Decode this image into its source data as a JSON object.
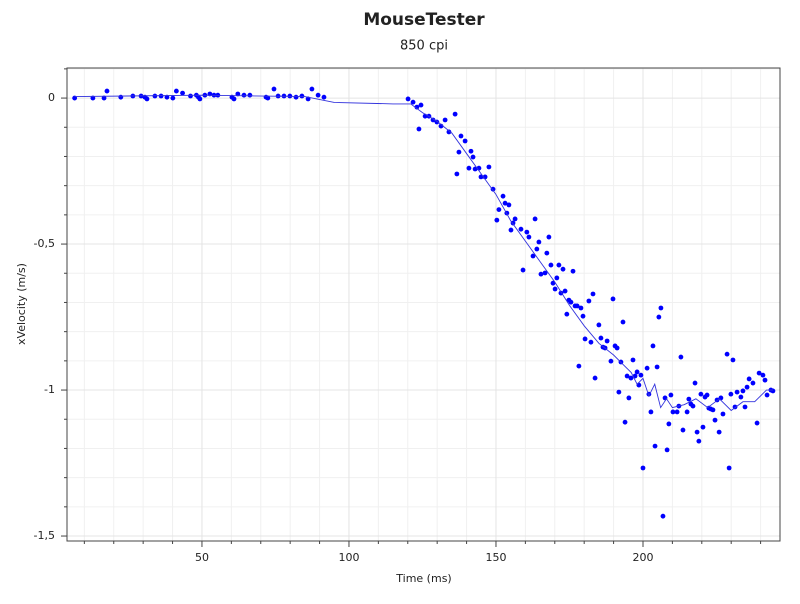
{
  "chart_data": {
    "type": "scatter",
    "title": "MouseTester",
    "subtitle": "850 cpi",
    "x_label": "Time (ms)",
    "y_label": "xVelocity (m/s)",
    "xlim": [
      4.1,
      246.6
    ],
    "ylim": [
      -1.517,
      0.103
    ],
    "xticks": [
      50,
      100,
      150,
      200
    ],
    "yticks": [
      0,
      {
        "value": -0.5,
        "label": "-0,5"
      },
      -1,
      {
        "value": -1.5,
        "label": "-1,5"
      }
    ],
    "x_minor_ticks": [
      10,
      20,
      30,
      40,
      60,
      70,
      80,
      90,
      110,
      120,
      130,
      140,
      160,
      170,
      180,
      190,
      210,
      220,
      230,
      240
    ],
    "y_minor_ticks": [
      0.1,
      -0.1,
      -0.2,
      -0.3,
      -0.4,
      -0.6,
      -0.7,
      -0.8,
      -0.9,
      -1.1,
      -1.2,
      -1.3,
      -1.4
    ],
    "grid": true,
    "series": [
      {
        "type": "scatter",
        "color": "#0000ff",
        "x": [
          6.7,
          12.9,
          16.7,
          17.7,
          22.4,
          26.5,
          29.3,
          30.6,
          31.3,
          34.0,
          36.1,
          38.1,
          40.1,
          41.3,
          43.4,
          46.1,
          48.1,
          48.8,
          49.3,
          51.0,
          52.7,
          54.1,
          55.4,
          60.2,
          60.9,
          62.2,
          64.3,
          66.3,
          71.8,
          72.4,
          74.5,
          75.9,
          77.9,
          79.9,
          82.0,
          84.0,
          86.1,
          87.4,
          89.5,
          91.5,
          120.1,
          121.8,
          123.1,
          123.8,
          124.5,
          125.9,
          127.2,
          128.6,
          129.9,
          131.3,
          132.7,
          134.0,
          136.1,
          136.7,
          137.4,
          138.1,
          139.5,
          140.8,
          141.5,
          142.2,
          142.9,
          144.2,
          144.9,
          146.3,
          147.6,
          149.0,
          150.3,
          151.0,
          152.4,
          153.1,
          153.7,
          154.4,
          155.1,
          155.8,
          156.5,
          158.5,
          159.2,
          160.5,
          161.2,
          162.6,
          163.3,
          163.9,
          164.6,
          165.3,
          166.7,
          167.3,
          168.0,
          168.7,
          169.4,
          170.1,
          170.7,
          171.4,
          172.1,
          172.8,
          173.5,
          174.1,
          174.8,
          175.5,
          176.2,
          176.9,
          177.6,
          178.2,
          178.9,
          179.6,
          180.3,
          181.6,
          182.3,
          183.0,
          183.7,
          185.0,
          185.7,
          186.4,
          187.1,
          187.8,
          189.1,
          189.8,
          190.5,
          191.2,
          191.8,
          192.5,
          193.2,
          193.9,
          194.6,
          195.2,
          195.9,
          196.6,
          197.3,
          198.0,
          198.6,
          199.3,
          200.0,
          201.4,
          202.0,
          202.7,
          203.4,
          204.1,
          204.8,
          205.4,
          206.1,
          206.8,
          207.5,
          208.2,
          208.8,
          209.5,
          210.2,
          211.6,
          212.2,
          212.9,
          213.6,
          215.0,
          215.6,
          216.3,
          217.0,
          217.7,
          218.4,
          219.0,
          219.7,
          220.4,
          221.1,
          221.8,
          222.4,
          223.1,
          223.8,
          224.5,
          225.2,
          225.9,
          226.5,
          227.2,
          228.6,
          229.3,
          229.9,
          230.6,
          231.3,
          232.0,
          233.3,
          234.0,
          234.7,
          235.4,
          236.1,
          237.4,
          238.8,
          239.5,
          240.8,
          241.5,
          242.2,
          243.5,
          244.2
        ],
        "values": [
          0,
          0,
          0,
          0.024,
          0.003,
          0.007,
          0.007,
          0.003,
          -0.003,
          0.007,
          0.007,
          0.003,
          0,
          0.024,
          0.017,
          0.007,
          0.01,
          0.003,
          -0.003,
          0.01,
          0.014,
          0.01,
          0.01,
          0.003,
          -0.003,
          0.014,
          0.01,
          0.01,
          0.003,
          0,
          0.031,
          0.007,
          0.007,
          0.007,
          0.003,
          0.007,
          -0.003,
          0.031,
          0.01,
          0.003,
          -0.003,
          -0.014,
          -0.031,
          -0.106,
          -0.024,
          -0.062,
          -0.062,
          -0.075,
          -0.082,
          -0.096,
          -0.075,
          -0.116,
          -0.055,
          -0.26,
          -0.185,
          -0.13,
          -0.147,
          -0.24,
          -0.182,
          -0.202,
          -0.243,
          -0.24,
          -0.27,
          -0.27,
          -0.236,
          -0.312,
          -0.418,
          -0.382,
          -0.336,
          -0.36,
          -0.394,
          -0.366,
          -0.452,
          -0.428,
          -0.414,
          -0.449,
          -0.589,
          -0.459,
          -0.476,
          -0.541,
          -0.414,
          -0.517,
          -0.493,
          -0.603,
          -0.599,
          -0.531,
          -0.476,
          -0.572,
          -0.634,
          -0.654,
          -0.616,
          -0.572,
          -0.668,
          -0.586,
          -0.661,
          -0.74,
          -0.692,
          -0.699,
          -0.593,
          -0.712,
          -0.712,
          -0.918,
          -0.719,
          -0.747,
          -0.825,
          -0.695,
          -0.836,
          -0.671,
          -0.959,
          -0.777,
          -0.822,
          -0.853,
          -0.856,
          -0.832,
          -0.901,
          -0.688,
          -0.849,
          -0.856,
          -1.007,
          -0.904,
          -0.767,
          -1.11,
          -0.952,
          -1.027,
          -0.959,
          -0.897,
          -0.952,
          -0.938,
          -0.983,
          -0.949,
          -1.267,
          -0.925,
          -1.014,
          -1.075,
          -0.849,
          -1.192,
          -0.921,
          -0.75,
          -0.719,
          -1.432,
          -1.027,
          -1.205,
          -1.116,
          -1.017,
          -1.075,
          -1.075,
          -1.055,
          -0.887,
          -1.137,
          -1.075,
          -1.031,
          -1.048,
          -1.055,
          -0.976,
          -1.144,
          -1.175,
          -1.014,
          -1.127,
          -1.024,
          -1.017,
          -1.062,
          -1.065,
          -1.068,
          -1.103,
          -1.034,
          -1.144,
          -1.027,
          -1.082,
          -0.877,
          -1.267,
          -1.014,
          -0.897,
          -1.058,
          -1.007,
          -1.024,
          -1.003,
          -1.058,
          -0.99,
          -0.962,
          -0.976,
          -1.113,
          -0.942,
          -0.949,
          -0.966,
          -1.017,
          -1,
          -1.003
        ]
      },
      {
        "type": "line",
        "color": "#3333dd",
        "x": [
          6.7,
          50,
          85,
          95,
          115,
          121,
          125,
          130,
          135,
          140,
          145,
          150,
          155,
          160,
          165,
          170,
          175,
          180,
          185,
          190,
          193,
          196,
          198,
          200,
          202,
          204,
          206,
          208,
          210,
          214,
          218,
          222,
          226,
          230,
          234,
          238,
          242,
          244.2
        ],
        "values": [
          0.005,
          0.01,
          0.005,
          -0.015,
          -0.02,
          -0.02,
          -0.05,
          -0.08,
          -0.12,
          -0.19,
          -0.26,
          -0.33,
          -0.42,
          -0.49,
          -0.56,
          -0.63,
          -0.71,
          -0.78,
          -0.84,
          -0.88,
          -0.91,
          -0.94,
          -0.98,
          -0.96,
          -1.02,
          -0.98,
          -1.06,
          -1.03,
          -1.06,
          -1.05,
          -1.03,
          -1.06,
          -1.03,
          -1.07,
          -1.04,
          -1.04,
          -1,
          -1
        ]
      }
    ]
  }
}
